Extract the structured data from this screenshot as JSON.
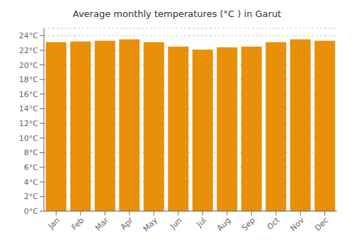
{
  "chart_data": {
    "type": "bar",
    "title": "Average monthly temperatures (°C ) in Garut",
    "categories": [
      "Jan",
      "Feb",
      "Mar",
      "Apr",
      "May",
      "Jun",
      "Jul",
      "Aug",
      "Sep",
      "Oct",
      "Nov",
      "Dec"
    ],
    "values": [
      23.1,
      23.2,
      23.3,
      23.5,
      23.1,
      22.5,
      22.1,
      22.4,
      22.5,
      23.1,
      23.5,
      23.3
    ],
    "color": "#E8900A",
    "ylim": [
      0,
      25
    ],
    "yticks": [
      {
        "value": 0,
        "label": "0°C"
      },
      {
        "value": 2,
        "label": "2°C"
      },
      {
        "value": 4,
        "label": "4°C"
      },
      {
        "value": 6,
        "label": "6°C"
      },
      {
        "value": 8,
        "label": "8°C"
      },
      {
        "value": 10,
        "label": "10°C"
      },
      {
        "value": 12,
        "label": "12°C"
      },
      {
        "value": 14,
        "label": "14°C"
      },
      {
        "value": 16,
        "label": "16°C"
      },
      {
        "value": 18,
        "label": "18°C"
      },
      {
        "value": 20,
        "label": "20°C"
      },
      {
        "value": 22,
        "label": "22°C"
      },
      {
        "value": 24,
        "label": "24°C"
      }
    ],
    "grid": true
  }
}
